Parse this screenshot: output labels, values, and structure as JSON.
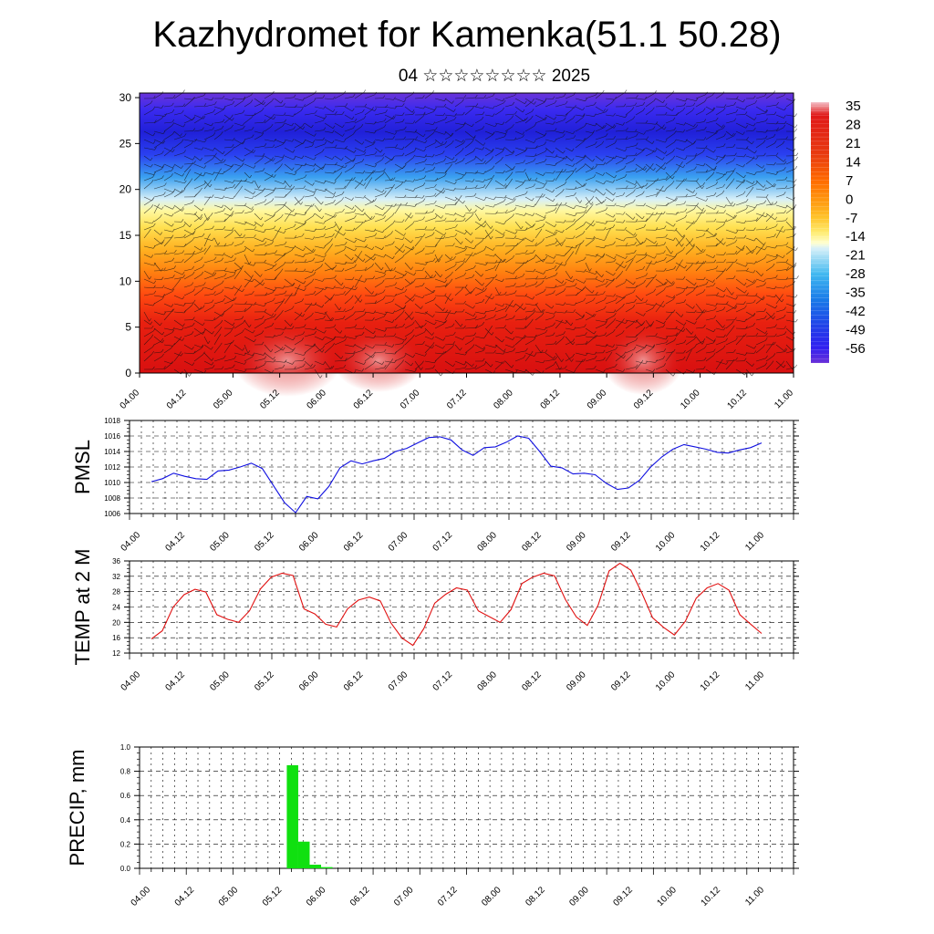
{
  "title": "Kazhydromet for Kamenka(51.1 50.28)",
  "subtitle": "04 ☆☆☆☆☆☆☆☆ 2025",
  "chart_data": [
    {
      "type": "heatmap",
      "name": "cross-section",
      "x_ticks": [
        "04.00",
        "04.12",
        "05.00",
        "05.12",
        "06.00",
        "06.12",
        "07.00",
        "07.12",
        "08.00",
        "08.12",
        "09.00",
        "09.12",
        "10.00",
        "10.12",
        "11.00"
      ],
      "y_ticks": [
        "0",
        "5",
        "10",
        "15",
        "20",
        "25",
        "30"
      ],
      "ylim": [
        0,
        30.5
      ],
      "colorbar": {
        "labels": [
          "35",
          "28",
          "21",
          "14",
          "7",
          "0",
          "-7",
          "-14",
          "-21",
          "-28",
          "-35",
          "-42",
          "-49",
          "-56"
        ],
        "colors": [
          "#f0a0a8",
          "#e01818",
          "#e83a10",
          "#ff6a00",
          "#ff9a10",
          "#ffc228",
          "#ffec70",
          "#ffffc8",
          "#b8e8f8",
          "#40b8f0",
          "#1878e8",
          "#2040e8",
          "#3020f0",
          "#5a20d8"
        ]
      },
      "overlay": "wind barbs"
    },
    {
      "type": "line",
      "ylabel": "PMSL",
      "ylim": [
        1006,
        1018
      ],
      "y_ticks": [
        "1006",
        "1008",
        "1010",
        "1012",
        "1014",
        "1016",
        "1018"
      ],
      "x_ticks": [
        "04.00",
        "04.12",
        "05.00",
        "05.12",
        "06.00",
        "06.12",
        "07.00",
        "07.12",
        "08.00",
        "08.12",
        "09.00",
        "09.12",
        "10.00",
        "10.12",
        "11.00"
      ],
      "color": "#1010e0",
      "values": [
        1010.1,
        1010.5,
        1011.2,
        1010.8,
        1010.5,
        1010.4,
        1011.5,
        1011.6,
        1012.0,
        1012.5,
        1011.8,
        1009.6,
        1007.4,
        1006.1,
        1008.2,
        1007.9,
        1009.5,
        1011.9,
        1012.8,
        1012.4,
        1012.8,
        1013.1,
        1014.0,
        1014.4,
        1015.1,
        1015.8,
        1015.9,
        1015.5,
        1014.2,
        1013.5,
        1014.5,
        1014.6,
        1015.2,
        1016.0,
        1015.7,
        1014.0,
        1012.1,
        1011.9,
        1011.1,
        1011.2,
        1011.0,
        1009.9,
        1009.1,
        1009.3,
        1010.3,
        1012.0,
        1013.3,
        1014.3,
        1014.9,
        1014.6,
        1014.3,
        1013.9,
        1013.8,
        1014.2,
        1014.5,
        1015.1
      ]
    },
    {
      "type": "line",
      "ylabel": "TEMP at 2 M",
      "ylim": [
        12,
        36
      ],
      "y_ticks": [
        "12",
        "16",
        "20",
        "24",
        "28",
        "32",
        "36"
      ],
      "x_ticks": [
        "04.00",
        "04.12",
        "05.00",
        "05.12",
        "06.00",
        "06.12",
        "07.00",
        "07.12",
        "08.00",
        "08.12",
        "09.00",
        "09.12",
        "10.00",
        "10.12",
        "11.00"
      ],
      "color": "#e01010",
      "values": [
        15.7,
        17.8,
        24.0,
        27.2,
        28.6,
        27.9,
        22.0,
        20.8,
        20.0,
        23.0,
        28.7,
        31.8,
        32.8,
        32.2,
        23.5,
        22.2,
        19.5,
        18.8,
        23.5,
        25.8,
        26.6,
        25.6,
        19.8,
        15.9,
        14.0,
        18.4,
        25.0,
        27.3,
        29.0,
        28.4,
        23.0,
        21.5,
        20.0,
        23.3,
        30.1,
        31.8,
        32.8,
        32.1,
        25.9,
        21.4,
        19.2,
        24.5,
        33.4,
        35.4,
        33.6,
        27.7,
        21.2,
        18.7,
        16.7,
        20.3,
        26.3,
        29.0,
        30.1,
        28.4,
        22.0,
        19.5,
        17.1
      ]
    },
    {
      "type": "bar",
      "ylabel": "PRECIP, mm",
      "ylim": [
        0,
        1.0
      ],
      "y_ticks": [
        "0.0",
        "0.2",
        "0.4",
        "0.6",
        "0.8",
        "1.0"
      ],
      "x_ticks": [
        "04.00",
        "04.12",
        "05.00",
        "05.12",
        "06.00",
        "06.12",
        "07.00",
        "07.12",
        "08.00",
        "08.12",
        "09.00",
        "09.12",
        "10.00",
        "10.12",
        "11.00"
      ],
      "color": "#10e010",
      "bars": [
        {
          "x": "05.12",
          "value": 0.85
        },
        {
          "x": "05.15",
          "value": 0.22
        },
        {
          "x": "05.18",
          "value": 0.03
        },
        {
          "x": "05.21",
          "value": 0.01
        }
      ]
    }
  ]
}
